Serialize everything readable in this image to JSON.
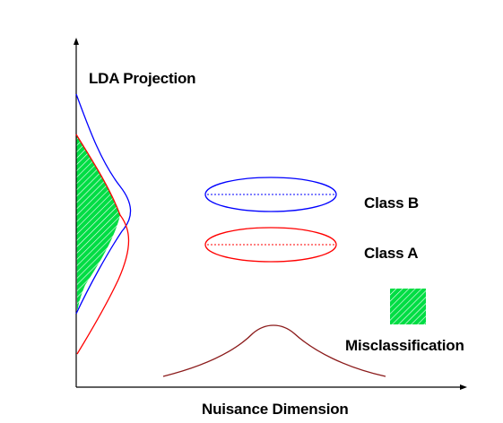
{
  "labels": {
    "y_axis": "LDA Projection",
    "x_axis": "Nuisance Dimension",
    "class_b": "Class B",
    "class_a": "Class A",
    "misclassification": "Misclassification"
  },
  "colors": {
    "class_a": "#ff0000",
    "class_b": "#0000ff",
    "nuisance_curve": "#8b1a1a",
    "misclassification": "#00dd44",
    "axes": "#000000"
  }
}
